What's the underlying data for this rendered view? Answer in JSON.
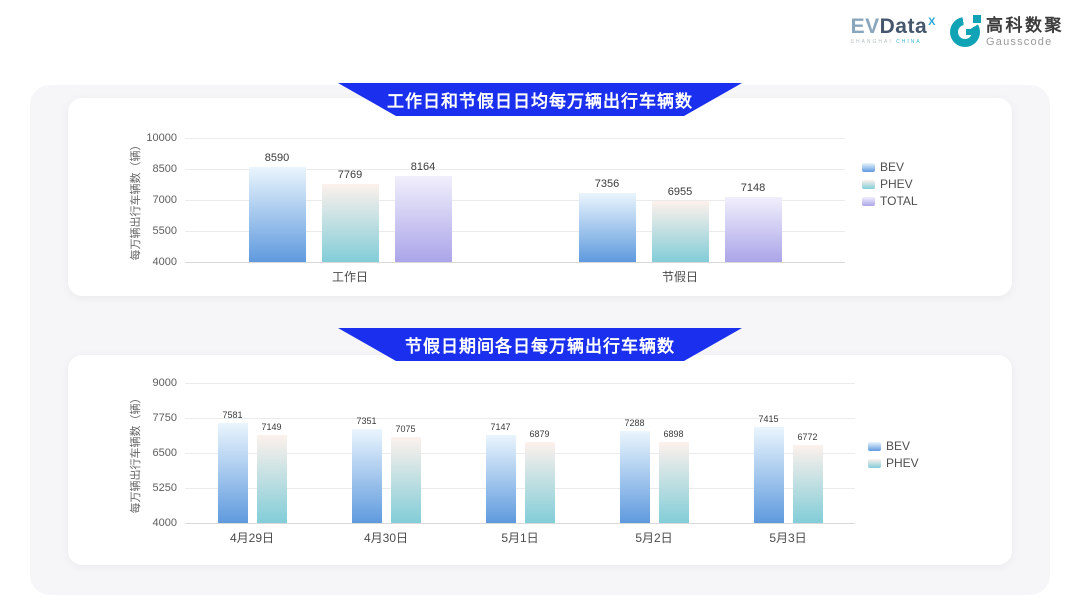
{
  "logo": {
    "evdata": {
      "ev": "EV",
      "data": "Data",
      "sup": "X",
      "tagline_left": "SHANGHAI",
      "tagline_right": "CHINA"
    },
    "gausscode": {
      "cn": "高科数聚",
      "en": "Gausscode"
    }
  },
  "colors": {
    "banner_blue": "#1b2fee",
    "stage_gray": "#f6f6f8",
    "card_white": "#ffffff",
    "gridline": "#ebebeb"
  },
  "series_colors": {
    "BEV": [
      "#eaf5fd",
      "#5f9ade"
    ],
    "PHEV": [
      "#fdf1ec",
      "#82cdd8"
    ],
    "TOTAL": [
      "#f1effc",
      "#aba5e9"
    ]
  },
  "chart_data": [
    {
      "type": "bar",
      "title": "工作日和节假日日均每万辆出行车辆数",
      "ylabel": "每万辆出行车辆数（辆）",
      "ylim": [
        4000,
        10000
      ],
      "yticks": [
        10000,
        8500,
        7000,
        5500,
        4000
      ],
      "grid": true,
      "legend_position": "right",
      "categories": [
        "工作日",
        "节假日"
      ],
      "series": [
        {
          "name": "BEV",
          "values": [
            8590,
            7356
          ]
        },
        {
          "name": "PHEV",
          "values": [
            7769,
            6955
          ]
        },
        {
          "name": "TOTAL",
          "values": [
            8164,
            7148
          ]
        }
      ]
    },
    {
      "type": "bar",
      "title": "节假日期间各日每万辆出行车辆数",
      "ylabel": "每万辆出行车辆数（辆）",
      "ylim": [
        4000,
        9000
      ],
      "yticks": [
        9000,
        7750,
        6500,
        5250,
        4000
      ],
      "grid": true,
      "legend_position": "right",
      "categories": [
        "4月29日",
        "4月30日",
        "5月1日",
        "5月2日",
        "5月3日"
      ],
      "series": [
        {
          "name": "BEV",
          "values": [
            7581,
            7351,
            7147,
            7288,
            7415
          ]
        },
        {
          "name": "PHEV",
          "values": [
            7149,
            7075,
            6879,
            6898,
            6772
          ]
        }
      ]
    }
  ]
}
